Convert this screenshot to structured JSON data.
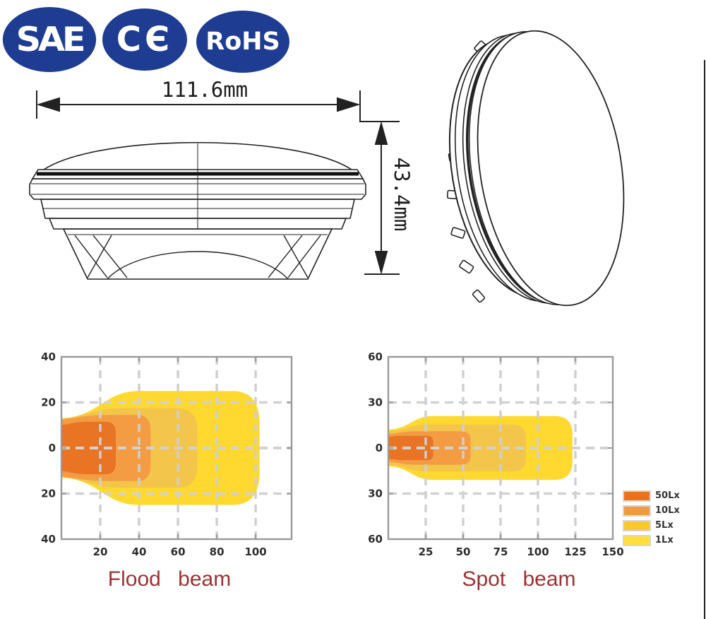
{
  "certifications": {
    "badge_color": "#1e3d92",
    "badges": [
      {
        "name": "sae",
        "label": "SAE"
      },
      {
        "name": "ce",
        "label": "CЄ"
      },
      {
        "name": "rohs",
        "label": "RoHS"
      }
    ]
  },
  "drawing": {
    "width_dimension": "111.6mm",
    "height_dimension": "43.4mm"
  },
  "chart_data": [
    {
      "type": "area",
      "title": "Flood beam",
      "xlabel": "",
      "ylabel": "",
      "xlim": [
        0,
        118.5
      ],
      "ylim": [
        -40,
        40
      ],
      "x_ticks": [
        20,
        40,
        60,
        80,
        100
      ],
      "y_ticks": [
        {
          "label": "40",
          "value": 40
        },
        {
          "label": "20",
          "value": 20
        },
        {
          "label": "0",
          "value": 0
        },
        {
          "label": "20",
          "value": -20
        },
        {
          "label": "40",
          "value": -40
        }
      ],
      "grid": "dashed",
      "series": [
        {
          "name": "1Lx",
          "color": "#FFD92F",
          "x_end": 102,
          "half_height_start": 13,
          "half_height_max": 25,
          "x_full_width": 40,
          "corner_radius": 14
        },
        {
          "name": "5Lx",
          "color": "#F3C64B",
          "x_end": 70,
          "half_height_start": 13,
          "half_height_max": 17.5,
          "x_full_width": 30,
          "corner_radius": 10
        },
        {
          "name": "10Lx",
          "color": "#F49C43",
          "x_end": 46,
          "half_height_start": 12.5,
          "half_height_max": 14.5,
          "x_full_width": 22,
          "corner_radius": 7
        },
        {
          "name": "50Lx",
          "color": "#E97423",
          "x_end": 28,
          "half_height_start": 10,
          "half_height_max": 11.5,
          "x_full_width": 14,
          "corner_radius": 5
        }
      ]
    },
    {
      "type": "area",
      "title": "Spot beam",
      "xlabel": "",
      "ylabel": "",
      "xlim": [
        0,
        150
      ],
      "ylim": [
        -60,
        60
      ],
      "x_ticks": [
        25,
        50,
        75,
        100,
        125,
        150
      ],
      "y_ticks": [
        {
          "label": "60",
          "value": 60
        },
        {
          "label": "30",
          "value": 30
        },
        {
          "label": "0",
          "value": 0
        },
        {
          "label": "30",
          "value": -30
        },
        {
          "label": "60",
          "value": -60
        }
      ],
      "grid": "dashed",
      "series": [
        {
          "name": "1Lx",
          "color": "#FFD92F",
          "x_end": 123,
          "half_height_start": 12,
          "half_height_max": 21,
          "x_full_width": 30,
          "corner_radius": 12
        },
        {
          "name": "5Lx",
          "color": "#F3C64B",
          "x_end": 92,
          "half_height_start": 11,
          "half_height_max": 15.5,
          "x_full_width": 26,
          "corner_radius": 9
        },
        {
          "name": "10Lx",
          "color": "#F49C43",
          "x_end": 55,
          "half_height_start": 9,
          "half_height_max": 11,
          "x_full_width": 18,
          "corner_radius": 6
        },
        {
          "name": "50Lx",
          "color": "#E97423",
          "x_end": 30,
          "half_height_start": 7,
          "half_height_max": 8,
          "x_full_width": 12,
          "corner_radius": 4
        }
      ]
    }
  ],
  "legend": {
    "items": [
      {
        "label": "50Lx",
        "color": "#E8731C"
      },
      {
        "label": "10Lx",
        "color": "#F09A44"
      },
      {
        "label": "5Lx",
        "color": "#F9C929"
      },
      {
        "label": "1Lx",
        "color": "#FFDF3D"
      }
    ]
  }
}
